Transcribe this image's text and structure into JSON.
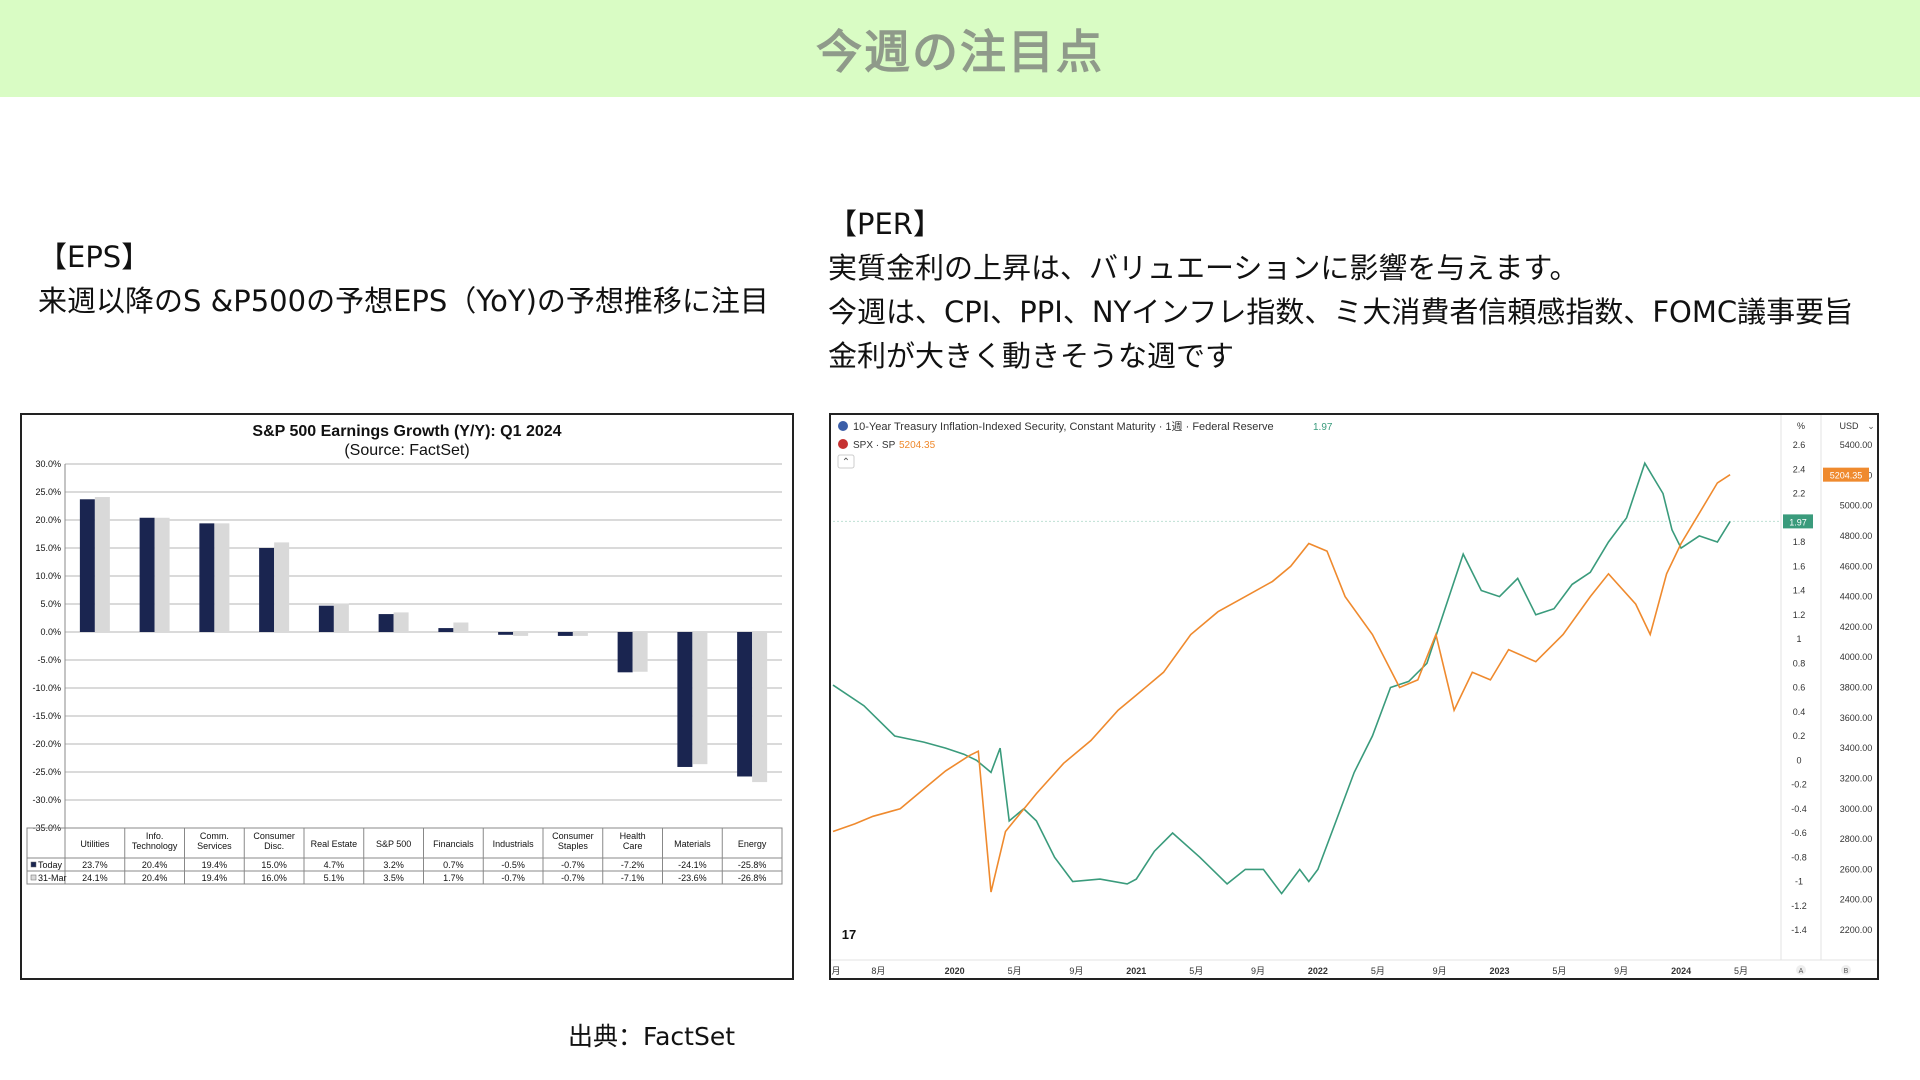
{
  "header": {
    "title": "今週の注目点"
  },
  "eps": {
    "heading": "【EPS】",
    "description": "来週以降のS &P500の予想EPS（YoY)の予想推移に注目"
  },
  "per": {
    "heading": "【PER】",
    "line1": "実質金利の上昇は、バリュエーションに影響を与えます。",
    "line2": "今週は、CPI、PPI、NYインフレ指数、ミ大消費者信頼感指数、FOMC議事要旨",
    "line3": "金利が大きく動きそうな週です"
  },
  "footer": {
    "source": "出典：FactSet"
  },
  "colors": {
    "banner_bg": "#d9fcc4",
    "today_bar": "#1a2550",
    "march_bar": "#d9d9d9",
    "teal_line": "#3a9b7c",
    "orange_line": "#ef8a2e"
  },
  "chart_data": [
    {
      "type": "bar",
      "title": "S&P 500 Earnings Growth (Y/Y): Q1 2024",
      "subtitle": "(Source: FactSet)",
      "categories": [
        "Utilities",
        "Info.\nTechnology",
        "Comm.\nServices",
        "Consumer\nDisc.",
        "Real Estate",
        "S&P 500",
        "Financials",
        "Industrials",
        "Consumer\nStaples",
        "Health\nCare",
        "Materials",
        "Energy"
      ],
      "series": [
        {
          "name": "Today",
          "values": [
            23.7,
            20.4,
            19.4,
            15.0,
            4.7,
            3.2,
            0.7,
            -0.5,
            -0.7,
            -7.2,
            -24.1,
            -25.8
          ]
        },
        {
          "name": "31-Mar",
          "values": [
            24.1,
            20.4,
            19.4,
            16.0,
            5.1,
            3.5,
            1.7,
            -0.7,
            -0.7,
            -7.1,
            -23.6,
            -26.8
          ]
        }
      ],
      "table_labels": {
        "Today": [
          "23.7%",
          "20.4%",
          "19.4%",
          "15.0%",
          "4.7%",
          "3.2%",
          "0.7%",
          "-0.5%",
          "-0.7%",
          "-7.2%",
          "-24.1%",
          "-25.8%"
        ],
        "31-Mar": [
          "24.1%",
          "20.4%",
          "19.4%",
          "16.0%",
          "5.1%",
          "3.5%",
          "1.7%",
          "-0.7%",
          "-0.7%",
          "-7.1%",
          "-23.6%",
          "-26.8%"
        ]
      },
      "ylim": [
        -35,
        30
      ],
      "yticks": [
        "30.0%",
        "25.0%",
        "20.0%",
        "15.0%",
        "10.0%",
        "5.0%",
        "0.0%",
        "-5.0%",
        "-10.0%",
        "-15.0%",
        "-20.0%",
        "-25.0%",
        "-30.0%",
        "-35.0%"
      ],
      "grid": true
    },
    {
      "type": "line",
      "legend": [
        {
          "label": "10-Year Treasury Inflation-Indexed Security, Constant Maturity · 1週 · Federal Reserve",
          "value": "1.97"
        },
        {
          "label": "SPX · SP",
          "value": "5204.35"
        }
      ],
      "x_ticks": [
        "月",
        "8月",
        "2020",
        "5月",
        "9月",
        "2021",
        "5月",
        "9月",
        "2022",
        "5月",
        "9月",
        "2023",
        "5月",
        "9月",
        "2024",
        "5月"
      ],
      "left_axis": {
        "unit": "%",
        "ylim": [
          -1.4,
          2.6
        ],
        "ticks": [
          "2.6",
          "2.4",
          "2.2",
          "2",
          "1.8",
          "1.6",
          "1.4",
          "1.2",
          "1",
          "0.8",
          "0.6",
          "0.4",
          "0.2",
          "0",
          "-0.2",
          "-0.4",
          "-0.6",
          "-0.8",
          "-1",
          "-1.2",
          "-1.4"
        ]
      },
      "right_axis": {
        "unit": "USD",
        "ylim": [
          2200,
          5400
        ],
        "ticks": [
          "5400.00",
          "5200.00",
          "5000.00",
          "4800.00",
          "4600.00",
          "4400.00",
          "4200.00",
          "4000.00",
          "3800.00",
          "3600.00",
          "3400.00",
          "3200.00",
          "3000.00",
          "2800.00",
          "2600.00",
          "2400.00",
          "2200.00"
        ]
      },
      "last_labels": {
        "real_yield": "1.97",
        "spx": "5204.35"
      },
      "series": [
        {
          "name": "10-Year Treasury Inflation-Indexed Security",
          "axis": "left",
          "values": [
            [
              2019.33,
              0.62
            ],
            [
              2019.5,
              0.45
            ],
            [
              2019.67,
              0.2
            ],
            [
              2019.83,
              0.15
            ],
            [
              2019.95,
              0.1
            ],
            [
              2020.05,
              0.05
            ],
            [
              2020.12,
              0.0
            ],
            [
              2020.2,
              -0.1
            ],
            [
              2020.25,
              0.1
            ],
            [
              2020.3,
              -0.5
            ],
            [
              2020.38,
              -0.4
            ],
            [
              2020.45,
              -0.5
            ],
            [
              2020.55,
              -0.8
            ],
            [
              2020.65,
              -1.0
            ],
            [
              2020.8,
              -0.98
            ],
            [
              2020.95,
              -1.02
            ],
            [
              2021.0,
              -0.98
            ],
            [
              2021.1,
              -0.75
            ],
            [
              2021.2,
              -0.6
            ],
            [
              2021.35,
              -0.8
            ],
            [
              2021.5,
              -1.02
            ],
            [
              2021.6,
              -0.9
            ],
            [
              2021.7,
              -0.9
            ],
            [
              2021.8,
              -1.1
            ],
            [
              2021.9,
              -0.9
            ],
            [
              2021.95,
              -1.0
            ],
            [
              2022.0,
              -0.9
            ],
            [
              2022.1,
              -0.5
            ],
            [
              2022.2,
              -0.1
            ],
            [
              2022.3,
              0.2
            ],
            [
              2022.4,
              0.6
            ],
            [
              2022.5,
              0.65
            ],
            [
              2022.6,
              0.8
            ],
            [
              2022.7,
              1.25
            ],
            [
              2022.8,
              1.7
            ],
            [
              2022.9,
              1.4
            ],
            [
              2023.0,
              1.35
            ],
            [
              2023.1,
              1.5
            ],
            [
              2023.2,
              1.2
            ],
            [
              2023.3,
              1.25
            ],
            [
              2023.4,
              1.45
            ],
            [
              2023.5,
              1.55
            ],
            [
              2023.6,
              1.8
            ],
            [
              2023.7,
              2.0
            ],
            [
              2023.8,
              2.45
            ],
            [
              2023.9,
              2.2
            ],
            [
              2023.95,
              1.9
            ],
            [
              2024.0,
              1.75
            ],
            [
              2024.1,
              1.85
            ],
            [
              2024.2,
              1.8
            ],
            [
              2024.27,
              1.97
            ]
          ]
        },
        {
          "name": "SPX",
          "axis": "right",
          "values": [
            [
              2019.33,
              2850
            ],
            [
              2019.45,
              2900
            ],
            [
              2019.55,
              2950
            ],
            [
              2019.7,
              3000
            ],
            [
              2019.85,
              3150
            ],
            [
              2019.95,
              3250
            ],
            [
              2020.08,
              3350
            ],
            [
              2020.13,
              3380
            ],
            [
              2020.2,
              2450
            ],
            [
              2020.28,
              2850
            ],
            [
              2020.45,
              3100
            ],
            [
              2020.6,
              3300
            ],
            [
              2020.75,
              3450
            ],
            [
              2020.9,
              3650
            ],
            [
              2021.0,
              3750
            ],
            [
              2021.15,
              3900
            ],
            [
              2021.3,
              4150
            ],
            [
              2021.45,
              4300
            ],
            [
              2021.6,
              4400
            ],
            [
              2021.75,
              4500
            ],
            [
              2021.85,
              4600
            ],
            [
              2021.95,
              4750
            ],
            [
              2022.05,
              4700
            ],
            [
              2022.15,
              4400
            ],
            [
              2022.3,
              4150
            ],
            [
              2022.45,
              3800
            ],
            [
              2022.55,
              3850
            ],
            [
              2022.65,
              4150
            ],
            [
              2022.75,
              3650
            ],
            [
              2022.85,
              3900
            ],
            [
              2022.95,
              3850
            ],
            [
              2023.05,
              4050
            ],
            [
              2023.2,
              3970
            ],
            [
              2023.35,
              4150
            ],
            [
              2023.5,
              4400
            ],
            [
              2023.6,
              4550
            ],
            [
              2023.75,
              4350
            ],
            [
              2023.83,
              4150
            ],
            [
              2023.92,
              4550
            ],
            [
              2024.0,
              4750
            ],
            [
              2024.1,
              4950
            ],
            [
              2024.2,
              5150
            ],
            [
              2024.27,
              5204
            ]
          ]
        }
      ]
    }
  ]
}
